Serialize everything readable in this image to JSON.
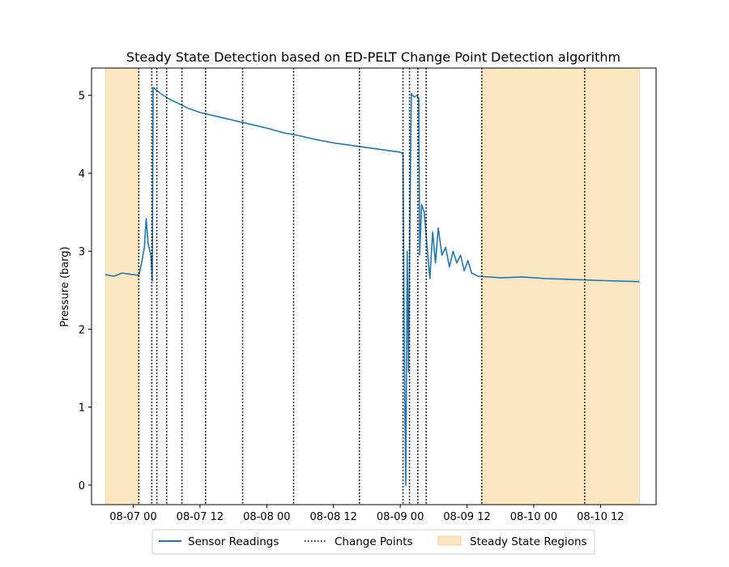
{
  "chart_data": {
    "type": "line",
    "title": "Steady State Detection based on ED-PELT Change Point Detection algorithm",
    "xlabel": "",
    "ylabel": "Pressure (barg)",
    "x_axis": {
      "type": "datetime",
      "range": [
        "2023-08-06T16:30:00",
        "2023-08-10T22:00:00"
      ],
      "ticks": [
        {
          "value": "2023-08-07T00:00:00",
          "label": "08-07 00"
        },
        {
          "value": "2023-08-07T12:00:00",
          "label": "08-07 12"
        },
        {
          "value": "2023-08-08T00:00:00",
          "label": "08-08 00"
        },
        {
          "value": "2023-08-08T12:00:00",
          "label": "08-08 12"
        },
        {
          "value": "2023-08-09T00:00:00",
          "label": "08-09 00"
        },
        {
          "value": "2023-08-09T12:00:00",
          "label": "08-09 12"
        },
        {
          "value": "2023-08-10T00:00:00",
          "label": "08-10 00"
        },
        {
          "value": "2023-08-10T12:00:00",
          "label": "08-10 12"
        }
      ]
    },
    "y_axis": {
      "range": [
        -0.25,
        5.35
      ],
      "ticks": [
        0,
        1,
        2,
        3,
        4,
        5
      ]
    },
    "grid": false,
    "legend": {
      "placement": "bottom-center",
      "entries": [
        {
          "label": "Sensor Readings",
          "kind": "line",
          "color": "#1f77b4"
        },
        {
          "label": "Change Points",
          "kind": "dotted-line",
          "color": "#000000"
        },
        {
          "label": "Steady State Regions",
          "kind": "patch",
          "color": "#fde7c0"
        }
      ]
    },
    "series": [
      {
        "name": "Sensor Readings",
        "color": "#1f77b4",
        "points": [
          [
            "2023-08-06T19:00:00",
            2.7
          ],
          [
            "2023-08-06T20:30:00",
            2.68
          ],
          [
            "2023-08-06T22:00:00",
            2.72
          ],
          [
            "2023-08-07T00:00:00",
            2.7
          ],
          [
            "2023-08-07T01:00:00",
            2.69
          ],
          [
            "2023-08-07T01:30:00",
            2.85
          ],
          [
            "2023-08-07T02:00:00",
            3.05
          ],
          [
            "2023-08-07T02:20:00",
            3.42
          ],
          [
            "2023-08-07T02:40:00",
            3.1
          ],
          [
            "2023-08-07T03:10:00",
            2.95
          ],
          [
            "2023-08-07T03:25:00",
            2.62
          ],
          [
            "2023-08-07T03:35:00",
            5.1
          ],
          [
            "2023-08-07T05:00:00",
            5.02
          ],
          [
            "2023-08-07T06:30:00",
            4.95
          ],
          [
            "2023-08-07T08:00:00",
            4.9
          ],
          [
            "2023-08-07T10:00:00",
            4.83
          ],
          [
            "2023-08-07T12:00:00",
            4.78
          ],
          [
            "2023-08-07T15:00:00",
            4.73
          ],
          [
            "2023-08-07T18:00:00",
            4.68
          ],
          [
            "2023-08-07T21:00:00",
            4.63
          ],
          [
            "2023-08-08T00:00:00",
            4.58
          ],
          [
            "2023-08-08T03:00:00",
            4.52
          ],
          [
            "2023-08-08T06:00:00",
            4.48
          ],
          [
            "2023-08-08T09:00:00",
            4.43
          ],
          [
            "2023-08-08T12:00:00",
            4.39
          ],
          [
            "2023-08-08T15:00:00",
            4.36
          ],
          [
            "2023-08-08T18:00:00",
            4.33
          ],
          [
            "2023-08-08T21:00:00",
            4.3
          ],
          [
            "2023-08-09T00:00:00",
            4.27
          ],
          [
            "2023-08-09T00:30:00",
            4.25
          ],
          [
            "2023-08-09T00:45:00",
            1.5
          ],
          [
            "2023-08-09T01:00:00",
            0.0
          ],
          [
            "2023-08-09T01:15:00",
            3.0
          ],
          [
            "2023-08-09T01:30:00",
            1.45
          ],
          [
            "2023-08-09T01:45:00",
            3.5
          ],
          [
            "2023-08-09T02:00:00",
            5.02
          ],
          [
            "2023-08-09T02:30:00",
            4.98
          ],
          [
            "2023-08-09T03:00:00",
            5.0
          ],
          [
            "2023-08-09T03:20:00",
            4.96
          ],
          [
            "2023-08-09T03:30:00",
            2.95
          ],
          [
            "2023-08-09T03:50:00",
            3.6
          ],
          [
            "2023-08-09T04:20:00",
            3.5
          ],
          [
            "2023-08-09T04:50:00",
            3.05
          ],
          [
            "2023-08-09T05:20:00",
            2.65
          ],
          [
            "2023-08-09T05:50:00",
            3.25
          ],
          [
            "2023-08-09T06:20:00",
            2.85
          ],
          [
            "2023-08-09T06:50:00",
            3.3
          ],
          [
            "2023-08-09T07:30:00",
            2.95
          ],
          [
            "2023-08-09T08:10:00",
            3.05
          ],
          [
            "2023-08-09T08:50:00",
            2.8
          ],
          [
            "2023-08-09T09:30:00",
            3.0
          ],
          [
            "2023-08-09T10:10:00",
            2.85
          ],
          [
            "2023-08-09T10:50:00",
            2.95
          ],
          [
            "2023-08-09T11:30:00",
            2.75
          ],
          [
            "2023-08-09T12:10:00",
            2.88
          ],
          [
            "2023-08-09T12:50:00",
            2.72
          ],
          [
            "2023-08-09T14:00:00",
            2.68
          ],
          [
            "2023-08-09T18:00:00",
            2.66
          ],
          [
            "2023-08-09T22:00:00",
            2.67
          ],
          [
            "2023-08-10T02:00:00",
            2.65
          ],
          [
            "2023-08-10T06:00:00",
            2.64
          ],
          [
            "2023-08-10T10:00:00",
            2.63
          ],
          [
            "2023-08-10T14:00:00",
            2.62
          ],
          [
            "2023-08-10T19:00:00",
            2.61
          ]
        ]
      }
    ],
    "change_points": [
      "2023-08-07T01:00:00",
      "2023-08-07T03:20:00",
      "2023-08-07T04:15:00",
      "2023-08-07T06:00:00",
      "2023-08-07T08:45:00",
      "2023-08-07T13:00:00",
      "2023-08-07T19:40:00",
      "2023-08-08T04:50:00",
      "2023-08-08T16:40:00",
      "2023-08-09T00:30:00",
      "2023-08-09T01:40:00",
      "2023-08-09T03:10:00",
      "2023-08-09T04:40:00",
      "2023-08-09T14:40:00",
      "2023-08-10T09:10:00"
    ],
    "steady_state_regions": [
      [
        "2023-08-06T19:00:00",
        "2023-08-07T01:00:00"
      ],
      [
        "2023-08-09T14:40:00",
        "2023-08-10T19:00:00"
      ]
    ]
  }
}
